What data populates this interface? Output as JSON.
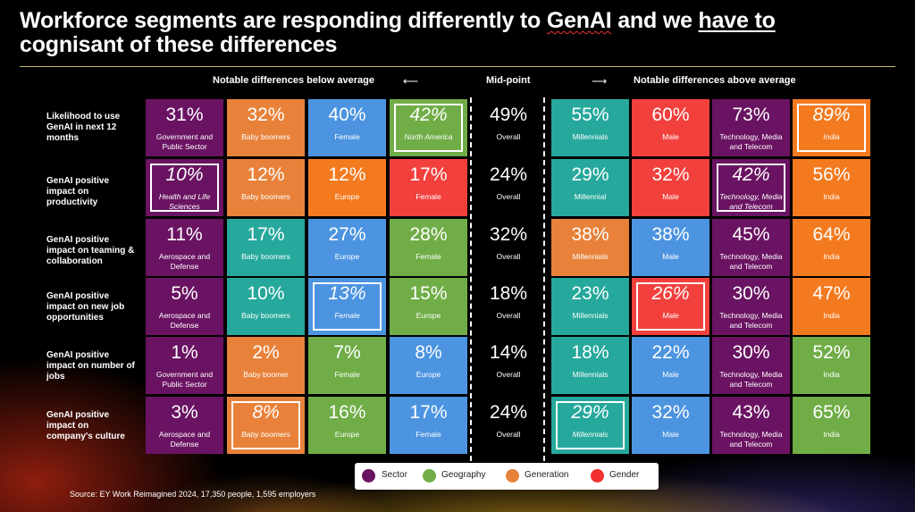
{
  "title": {
    "part1": "Workforce segments are responding differently to ",
    "genai": "GenAI",
    "part2": " and we ",
    "have_to": "have to",
    "line2": "cognisant of these differences"
  },
  "headers": {
    "below": "Notable differences below average",
    "mid": "Mid-point",
    "above": "Notable differences above average",
    "arrow_left": "⟵",
    "arrow_right": "⟶"
  },
  "colors": {
    "sector": "#6a1362",
    "geography": "#70ad47",
    "generation": "#e8823a",
    "gender": "#f2403d"
  },
  "rows": [
    {
      "label": "Likelihood to use GenAI in next 12 months",
      "cells": [
        {
          "value": "31%",
          "label": "Government and Public Sector",
          "color": "sector",
          "highlight": false
        },
        {
          "value": "32%",
          "label": "Baby boomers",
          "color": "gen",
          "highlight": false
        },
        {
          "value": "40%",
          "label": "Female",
          "color": "blue",
          "highlight": false
        },
        {
          "value": "42%",
          "label": "North America",
          "color": "geo",
          "highlight": true
        },
        {
          "value": "49%",
          "label": "Overall",
          "color": "mid",
          "highlight": false
        },
        {
          "value": "55%",
          "label": "Millennials",
          "color": "teal",
          "highlight": false
        },
        {
          "value": "60%",
          "label": "Male",
          "color": "gender",
          "highlight": false
        },
        {
          "value": "73%",
          "label": "Technology, Media and Telecom",
          "color": "sector",
          "highlight": false
        },
        {
          "value": "89%",
          "label": "India",
          "color": "orange",
          "highlight": true
        }
      ]
    },
    {
      "label": "GenAI positive impact on productivity",
      "cells": [
        {
          "value": "10%",
          "label": "Health and Life Sciences",
          "color": "sector",
          "highlight": true
        },
        {
          "value": "12%",
          "label": "Baby boomers",
          "color": "gen",
          "highlight": false
        },
        {
          "value": "12%",
          "label": "Europe",
          "color": "orange",
          "highlight": false
        },
        {
          "value": "17%",
          "label": "Female",
          "color": "gender",
          "highlight": false
        },
        {
          "value": "24%",
          "label": "Overall",
          "color": "mid",
          "highlight": false
        },
        {
          "value": "29%",
          "label": "Millennial",
          "color": "teal",
          "highlight": false
        },
        {
          "value": "32%",
          "label": "Male",
          "color": "gender",
          "highlight": false
        },
        {
          "value": "42%",
          "label": "Technology, Media and Telecom",
          "color": "sector",
          "highlight": true
        },
        {
          "value": "56%",
          "label": "India",
          "color": "orange",
          "highlight": false
        }
      ]
    },
    {
      "label": "GenAI positive impact on teaming & collaboration",
      "cells": [
        {
          "value": "11%",
          "label": "Aerospace and Defense",
          "color": "sector",
          "highlight": false
        },
        {
          "value": "17%",
          "label": "Baby boomers",
          "color": "teal",
          "highlight": false
        },
        {
          "value": "27%",
          "label": "Europe",
          "color": "blue",
          "highlight": false
        },
        {
          "value": "28%",
          "label": "Female",
          "color": "geo",
          "highlight": false
        },
        {
          "value": "32%",
          "label": "Overall",
          "color": "mid",
          "highlight": false
        },
        {
          "value": "38%",
          "label": "Millennials",
          "color": "gen",
          "highlight": false
        },
        {
          "value": "38%",
          "label": "Male",
          "color": "blue",
          "highlight": false
        },
        {
          "value": "45%",
          "label": "Technology, Media and Telecom",
          "color": "sector",
          "highlight": false
        },
        {
          "value": "64%",
          "label": "India",
          "color": "orange",
          "highlight": false
        }
      ]
    },
    {
      "label": "GenAI positive impact on new job opportunities",
      "cells": [
        {
          "value": "5%",
          "label": "Aerospace and Defense",
          "color": "sector",
          "highlight": false
        },
        {
          "value": "10%",
          "label": "Baby boomers",
          "color": "teal",
          "highlight": false
        },
        {
          "value": "13%",
          "label": "Female",
          "color": "blue",
          "highlight": true
        },
        {
          "value": "15%",
          "label": "Europe",
          "color": "geo",
          "highlight": false
        },
        {
          "value": "18%",
          "label": "Overall",
          "color": "mid",
          "highlight": false
        },
        {
          "value": "23%",
          "label": "Millennials",
          "color": "teal",
          "highlight": false
        },
        {
          "value": "26%",
          "label": "Male",
          "color": "gender",
          "highlight": true
        },
        {
          "value": "30%",
          "label": "Technology, Media and Telecom",
          "color": "sector",
          "highlight": false
        },
        {
          "value": "47%",
          "label": "India",
          "color": "orange",
          "highlight": false
        }
      ]
    },
    {
      "label": "GenAI positive impact on number of jobs",
      "cells": [
        {
          "value": "1%",
          "label": "Government and Public Sector",
          "color": "sector",
          "highlight": false
        },
        {
          "value": "2%",
          "label": "Baby boomer",
          "color": "gen",
          "highlight": false
        },
        {
          "value": "7%",
          "label": "Female",
          "color": "geo",
          "highlight": false
        },
        {
          "value": "8%",
          "label": "Europe",
          "color": "blue",
          "highlight": false
        },
        {
          "value": "14%",
          "label": "Overall",
          "color": "mid",
          "highlight": false
        },
        {
          "value": "18%",
          "label": "Millennials",
          "color": "teal",
          "highlight": false
        },
        {
          "value": "22%",
          "label": "Male",
          "color": "blue",
          "highlight": false
        },
        {
          "value": "30%",
          "label": "Technology, Media and Telecom",
          "color": "sector",
          "highlight": false
        },
        {
          "value": "52%",
          "label": "India",
          "color": "geo",
          "highlight": false
        }
      ]
    },
    {
      "label": "GenAI positive impact on company's culture",
      "cells": [
        {
          "value": "3%",
          "label": "Aerospace and Defense",
          "color": "sector",
          "highlight": false
        },
        {
          "value": "8%",
          "label": "Baby boomers",
          "color": "gen",
          "highlight": true
        },
        {
          "value": "16%",
          "label": "Europe",
          "color": "geo",
          "highlight": false
        },
        {
          "value": "17%",
          "label": "Female",
          "color": "blue",
          "highlight": false
        },
        {
          "value": "24%",
          "label": "Overall",
          "color": "mid",
          "highlight": false
        },
        {
          "value": "29%",
          "label": "Millennials",
          "color": "teal",
          "highlight": true
        },
        {
          "value": "32%",
          "label": "Male",
          "color": "blue",
          "highlight": false
        },
        {
          "value": "43%",
          "label": "Technology, Media and Telecom",
          "color": "sector",
          "highlight": false
        },
        {
          "value": "65%",
          "label": "India",
          "color": "geo",
          "highlight": false
        }
      ]
    }
  ],
  "legend": [
    {
      "label": "Sector",
      "color": "#6a1362"
    },
    {
      "label": "Geography",
      "color": "#70ad47"
    },
    {
      "label": "Generation",
      "color": "#e8823a"
    },
    {
      "label": "Gender",
      "color": "#f2302d"
    }
  ],
  "source": "Source: EY Work Reimagined 2024, 17,350 people, 1,595 employers"
}
